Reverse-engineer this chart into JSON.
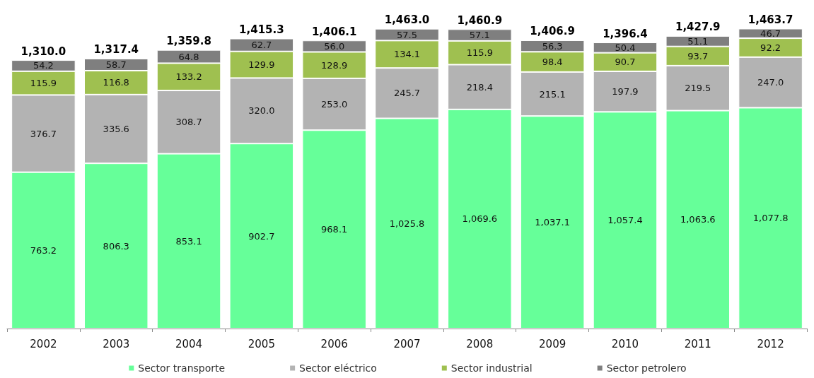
{
  "chart_data": {
    "type": "bar",
    "stacked": true,
    "legend": "bottom",
    "categories": [
      "2002",
      "2003",
      "2004",
      "2005",
      "2006",
      "2007",
      "2008",
      "2009",
      "2010",
      "2011",
      "2012"
    ],
    "series": [
      {
        "name": "Sector transporte",
        "color": "#66ff99",
        "values": [
          763.2,
          806.3,
          853.1,
          902.7,
          968.1,
          1025.8,
          1069.6,
          1037.1,
          1057.4,
          1063.6,
          1077.8
        ],
        "value_labels": [
          "763.2",
          "806.3",
          "853.1",
          "902.7",
          "968.1",
          "1,025.8",
          "1,069.6",
          "1,037.1",
          "1,057.4",
          "1,063.6",
          "1,077.8"
        ]
      },
      {
        "name": "Sector eléctrico",
        "color": "#b3b3b3",
        "values": [
          376.7,
          335.6,
          308.7,
          320.0,
          253.0,
          245.7,
          218.4,
          215.1,
          197.9,
          219.5,
          247.0
        ],
        "value_labels": [
          "376.7",
          "335.6",
          "308.7",
          "320.0",
          "253.0",
          "245.7",
          "218.4",
          "215.1",
          "197.9",
          "219.5",
          "247.0"
        ]
      },
      {
        "name": "Sector industrial",
        "color": "#9fc050",
        "values": [
          115.9,
          116.8,
          133.2,
          129.9,
          128.9,
          134.1,
          115.9,
          98.4,
          90.7,
          93.7,
          92.2
        ],
        "value_labels": [
          "115.9",
          "116.8",
          "133.2",
          "129.9",
          "128.9",
          "134.1",
          "115.9",
          "98.4",
          "90.7",
          "93.7",
          "92.2"
        ]
      },
      {
        "name": "Sector petrolero",
        "color": "#7f7f7f",
        "values": [
          54.2,
          58.7,
          64.8,
          62.7,
          56.0,
          57.5,
          57.1,
          56.3,
          50.4,
          51.1,
          46.7
        ],
        "value_labels": [
          "54.2",
          "58.7",
          "64.8",
          "62.7",
          "56.0",
          "57.5",
          "57.1",
          "56.3",
          "50.4",
          "51.1",
          "46.7"
        ]
      }
    ],
    "totals": [
      "1,310.0",
      "1,317.4",
      "1,359.8",
      "1,415.3",
      "1,406.1",
      "1,463.0",
      "1,460.9",
      "1,406.9",
      "1,396.4",
      "1,427.9",
      "1,463.7"
    ]
  }
}
